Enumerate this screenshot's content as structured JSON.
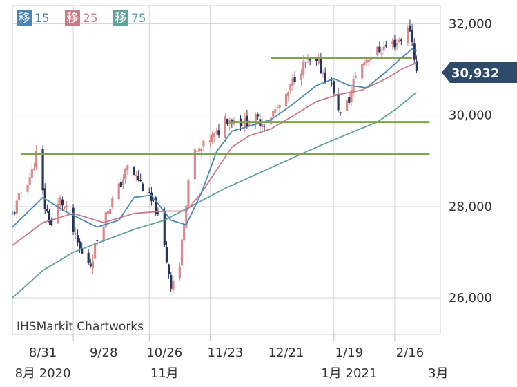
{
  "legend": [
    {
      "kanji": "移",
      "period": "15",
      "color": "#4a86b8"
    },
    {
      "kanji": "移",
      "period": "25",
      "color": "#cc7a8a"
    },
    {
      "kanji": "移",
      "period": "75",
      "color": "#5fa39a"
    }
  ],
  "watermark": "IHSMarkit Chartworks",
  "current_price": {
    "label": "30,932",
    "value": 30932,
    "color": "#2d4a6b"
  },
  "colors": {
    "up_candle": "#d98a8a",
    "down_candle": "#27345c",
    "trend_lines": "#7fa44a",
    "grid": "#d8d8d8",
    "axis_text": "#333333"
  },
  "chart_data": {
    "type": "candlestick",
    "y_ticks": [
      {
        "value": 26000,
        "label": "26,000"
      },
      {
        "value": 28000,
        "label": "28,000"
      },
      {
        "value": 30000,
        "label": "30,000"
      },
      {
        "value": 32000,
        "label": "32,000"
      }
    ],
    "ylim": [
      25200,
      32400
    ],
    "x_range": [
      "2020-08-17",
      "2021-03-02"
    ],
    "x_ticks": [
      {
        "date": "2020-08-31",
        "label": "8/31"
      },
      {
        "date": "2020-09-28",
        "label": "9/28"
      },
      {
        "date": "2020-10-26",
        "label": "10/26"
      },
      {
        "date": "2020-11-23",
        "label": "11/23"
      },
      {
        "date": "2020-12-21",
        "label": "12/21"
      },
      {
        "date": "2021-01-19",
        "label": "1/19"
      },
      {
        "date": "2021-02-16",
        "label": "2/16"
      }
    ],
    "month_labels": [
      {
        "date": "2020-08-31",
        "label": "8月 2020"
      },
      {
        "date": "2020-10-26",
        "label": "11月"
      },
      {
        "date": "2021-01-19",
        "label": "1月 2021"
      },
      {
        "date": "2021-03-01",
        "label": "3月"
      }
    ],
    "month_dividers": [
      "2020-09-14",
      "2020-10-19",
      "2020-11-16",
      "2020-12-14",
      "2021-01-12",
      "2021-02-09"
    ],
    "price_anchors": [
      [
        "2020-08-17",
        27800
      ],
      [
        "2020-08-21",
        28300
      ],
      [
        "2020-08-26",
        28750
      ],
      [
        "2020-08-28",
        29150
      ],
      [
        "2020-09-01",
        28000
      ],
      [
        "2020-09-04",
        27600
      ],
      [
        "2020-09-08",
        28150
      ],
      [
        "2020-09-11",
        27900
      ],
      [
        "2020-09-15",
        27300
      ],
      [
        "2020-09-18",
        26950
      ],
      [
        "2020-09-22",
        26750
      ],
      [
        "2020-09-25",
        27300
      ],
      [
        "2020-09-30",
        27950
      ],
      [
        "2020-10-05",
        28400
      ],
      [
        "2020-10-09",
        28850
      ],
      [
        "2020-10-14",
        28600
      ],
      [
        "2020-10-18",
        28250
      ],
      [
        "2020-10-22",
        27950
      ],
      [
        "2020-10-26",
        27100
      ],
      [
        "2020-10-29",
        26300
      ],
      [
        "2020-11-02",
        26700
      ],
      [
        "2020-11-04",
        27700
      ],
      [
        "2020-11-06",
        28600
      ],
      [
        "2020-11-09",
        29150
      ],
      [
        "2020-11-12",
        29250
      ],
      [
        "2020-11-16",
        29500
      ],
      [
        "2020-11-19",
        29550
      ],
      [
        "2020-11-23",
        29950
      ],
      [
        "2020-11-30",
        29850
      ],
      [
        "2020-12-07",
        29900
      ],
      [
        "2020-12-11",
        29850
      ],
      [
        "2020-12-16",
        30100
      ],
      [
        "2020-12-21",
        30350
      ],
      [
        "2020-12-25",
        30850
      ],
      [
        "2020-12-30",
        31150
      ],
      [
        "2021-01-05",
        31100
      ],
      [
        "2021-01-08",
        30850
      ],
      [
        "2021-01-12",
        30550
      ],
      [
        "2021-01-15",
        30000
      ],
      [
        "2021-01-19",
        30350
      ],
      [
        "2021-01-22",
        30900
      ],
      [
        "2021-01-27",
        31250
      ],
      [
        "2021-02-01",
        31400
      ],
      [
        "2021-02-05",
        31500
      ],
      [
        "2021-02-10",
        31600
      ],
      [
        "2021-02-14",
        31800
      ],
      [
        "2021-02-16",
        31900
      ],
      [
        "2021-02-18",
        31300
      ],
      [
        "2021-02-19",
        30932
      ]
    ],
    "ma15_points": [
      [
        "2020-08-17",
        27550
      ],
      [
        "2020-08-31",
        28200
      ],
      [
        "2020-09-10",
        27900
      ],
      [
        "2020-09-25",
        27550
      ],
      [
        "2020-10-05",
        27700
      ],
      [
        "2020-10-12",
        28200
      ],
      [
        "2020-10-20",
        28250
      ],
      [
        "2020-10-29",
        27700
      ],
      [
        "2020-11-05",
        27600
      ],
      [
        "2020-11-12",
        28300
      ],
      [
        "2020-11-19",
        29200
      ],
      [
        "2020-11-26",
        29650
      ],
      [
        "2020-12-07",
        29800
      ],
      [
        "2020-12-14",
        29900
      ],
      [
        "2020-12-23",
        30200
      ],
      [
        "2021-01-04",
        30650
      ],
      [
        "2021-01-12",
        30800
      ],
      [
        "2021-01-19",
        30650
      ],
      [
        "2021-01-27",
        30600
      ],
      [
        "2021-02-05",
        30950
      ],
      [
        "2021-02-12",
        31250
      ],
      [
        "2021-02-17",
        31450
      ],
      [
        "2021-02-19",
        31400
      ]
    ],
    "ma25_points": [
      [
        "2020-08-17",
        27150
      ],
      [
        "2020-08-31",
        27650
      ],
      [
        "2020-09-14",
        27850
      ],
      [
        "2020-09-28",
        27650
      ],
      [
        "2020-10-12",
        27850
      ],
      [
        "2020-10-26",
        27900
      ],
      [
        "2020-11-05",
        27900
      ],
      [
        "2020-11-12",
        28300
      ],
      [
        "2020-11-19",
        28800
      ],
      [
        "2020-11-26",
        29300
      ],
      [
        "2020-12-04",
        29550
      ],
      [
        "2020-12-14",
        29700
      ],
      [
        "2020-12-23",
        29950
      ],
      [
        "2021-01-04",
        30300
      ],
      [
        "2021-01-14",
        30450
      ],
      [
        "2021-01-25",
        30550
      ],
      [
        "2021-02-05",
        30800
      ],
      [
        "2021-02-12",
        31000
      ],
      [
        "2021-02-19",
        31150
      ]
    ],
    "ma75_points": [
      [
        "2020-08-17",
        26000
      ],
      [
        "2020-08-31",
        26600
      ],
      [
        "2020-09-14",
        27000
      ],
      [
        "2020-09-28",
        27250
      ],
      [
        "2020-10-12",
        27500
      ],
      [
        "2020-10-26",
        27700
      ],
      [
        "2020-11-09",
        28050
      ],
      [
        "2020-11-23",
        28400
      ],
      [
        "2020-12-07",
        28700
      ],
      [
        "2020-12-21",
        29000
      ],
      [
        "2021-01-04",
        29300
      ],
      [
        "2021-01-19",
        29600
      ],
      [
        "2021-02-01",
        29850
      ],
      [
        "2021-02-10",
        30150
      ],
      [
        "2021-02-19",
        30500
      ]
    ],
    "trend_lines": [
      {
        "from": [
          "2020-08-21",
          29150
        ],
        "to": [
          "2021-02-25",
          29150
        ]
      },
      {
        "from": [
          "2020-11-25",
          29850
        ],
        "to": [
          "2021-02-25",
          29850
        ]
      },
      {
        "from": [
          "2020-12-14",
          31250
        ],
        "to": [
          "2021-02-17",
          31250
        ]
      }
    ]
  }
}
